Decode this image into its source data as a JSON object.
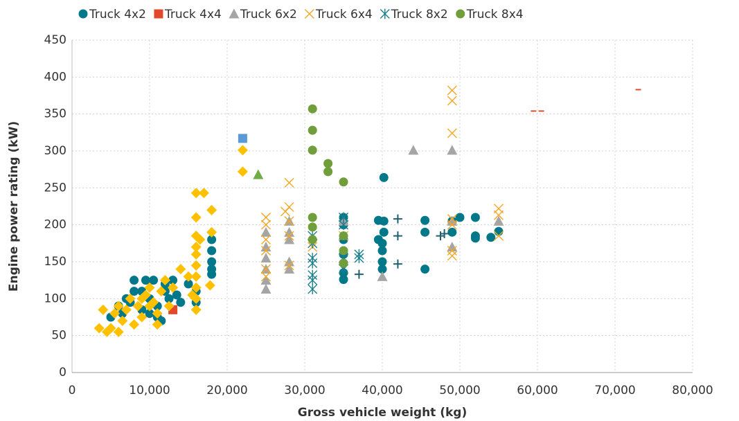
{
  "chart_data": {
    "type": "scatter",
    "xlabel": "Gross vehicle weight (kg)",
    "ylabel": "Engine power rating (kW)",
    "xlim": [
      0,
      80000
    ],
    "ylim": [
      0,
      450
    ],
    "xticks": [
      0,
      {
        "value": 10000,
        "label": "10,000"
      },
      {
        "value": 20000,
        "label": "20,000"
      },
      {
        "value": 30000,
        "label": "30,000"
      },
      {
        "value": 40000,
        "label": "40,000"
      },
      {
        "value": 50000,
        "label": "50,000"
      },
      {
        "value": 60000,
        "label": "60,000"
      },
      {
        "value": 70000,
        "label": "70,000"
      },
      {
        "value": 80000,
        "label": "80,000"
      }
    ],
    "yticks": [
      0,
      50,
      100,
      150,
      200,
      250,
      300,
      350,
      400,
      450
    ],
    "grid": true,
    "legend": "top",
    "series": [
      {
        "name": "Truck 4x2",
        "color": "#00788a",
        "marker": "circle",
        "x": [
          5000,
          6000,
          7000,
          8000,
          9000,
          9500,
          10000,
          10500,
          11000,
          11500,
          12000,
          12500,
          13000,
          14000,
          15000,
          16000,
          16000,
          18000,
          18000,
          18000,
          18000,
          18000,
          35000,
          35000,
          35000,
          35000,
          35000,
          35000,
          35000,
          39500,
          39500,
          40000,
          40000,
          40000,
          40000,
          40200,
          40200,
          40200,
          45500,
          45500,
          45500,
          49000,
          49000,
          50000,
          52000,
          52000,
          52000,
          54000,
          55000,
          9000,
          10000,
          11000,
          8000,
          12000,
          13500,
          6500,
          7500
        ],
        "values": [
          75,
          90,
          100,
          125,
          110,
          125,
          100,
          125,
          90,
          70,
          110,
          100,
          125,
          95,
          120,
          110,
          95,
          180,
          165,
          150,
          140,
          133,
          210,
          200,
          180,
          160,
          148,
          135,
          126,
          206,
          180,
          175,
          165,
          150,
          140,
          264,
          205,
          190,
          206,
          190,
          140,
          205,
          190,
          210,
          210,
          185,
          182,
          183,
          191,
          85,
          80,
          75,
          110,
          120,
          105,
          80,
          95
        ]
      },
      {
        "name": "Truck 4x4",
        "color": "#e0492b",
        "marker": "square",
        "x": [
          13000
        ],
        "values": [
          85
        ]
      },
      {
        "name": "Truck 6x2",
        "color": "#a5a5a5",
        "marker": "triangle",
        "x": [
          25000,
          25000,
          25000,
          25000,
          25000,
          25000,
          28000,
          28000,
          28000,
          28000,
          28000,
          35000,
          40000,
          44000,
          49000,
          49000,
          49000,
          55000
        ],
        "values": [
          113,
          125,
          140,
          155,
          170,
          190,
          140,
          150,
          180,
          190,
          205,
          205,
          130,
          301,
          301,
          170,
          205,
          205
        ]
      },
      {
        "name": "Truck 6x4",
        "color": "#f5a623",
        "marker": "x",
        "x": [
          25000,
          25000,
          25000,
          25000,
          25000,
          25000,
          27500,
          28000,
          28000,
          28000,
          28000,
          28000,
          31000,
          35000,
          49000,
          49000,
          49000,
          49000,
          49000,
          49000,
          49000,
          55000,
          55000,
          55000
        ],
        "values": [
          130,
          140,
          165,
          180,
          200,
          210,
          218,
          224,
          257,
          205,
          185,
          145,
          170,
          185,
          382,
          368,
          324,
          208,
          200,
          165,
          158,
          222,
          213,
          185
        ]
      },
      {
        "name": "Truck 8x2",
        "color": "#1a7f8c",
        "marker": "asterisk",
        "x": [
          31000,
          31000,
          31000,
          31000,
          31000,
          31000,
          31000,
          35000,
          35000,
          35000,
          35000,
          37000,
          37000
        ],
        "values": [
          113,
          125,
          132,
          148,
          155,
          175,
          185,
          210,
          200,
          155,
          140,
          160,
          155
        ]
      },
      {
        "name": "Truck 8x4",
        "color": "#6f9e3a",
        "marker": "circle",
        "x": [
          31000,
          31000,
          31000,
          33000,
          33000,
          35000,
          31000,
          31000,
          31000,
          35000,
          35000,
          35000
        ],
        "values": [
          357,
          328,
          301,
          283,
          272,
          258,
          210,
          197,
          180,
          185,
          165,
          148
        ]
      },
      {
        "color": "#ffc000",
        "marker": "diamond",
        "x": [
          3500,
          4000,
          4500,
          5000,
          5500,
          6000,
          6500,
          7000,
          7500,
          8000,
          8500,
          9000,
          9500,
          10000,
          10500,
          11000,
          11500,
          12000,
          12500,
          13000,
          14000,
          15000,
          15500,
          16000,
          16000,
          16000,
          16000,
          16000,
          16000,
          16000,
          16000,
          16000,
          16000,
          16500,
          17000,
          18000,
          18000,
          17800,
          22000,
          22000,
          6000,
          9000,
          10000,
          11000
        ],
        "values": [
          60,
          85,
          55,
          60,
          80,
          55,
          70,
          85,
          100,
          65,
          90,
          100,
          105,
          115,
          95,
          80,
          110,
          125,
          90,
          115,
          140,
          130,
          105,
          243,
          210,
          185,
          170,
          160,
          145,
          130,
          115,
          100,
          85,
          180,
          243,
          220,
          190,
          118,
          301,
          272,
          90,
          75,
          90,
          65
        ]
      },
      {
        "color": "#5b9bd5",
        "marker": "square",
        "x": [
          22000
        ],
        "values": [
          317
        ]
      },
      {
        "color": "#70ad47",
        "marker": "triangle",
        "x": [
          24000
        ],
        "values": [
          268
        ]
      },
      {
        "color": "#1f5f6f",
        "marker": "plus",
        "x": [
          37000,
          42000,
          42000,
          42000,
          47500,
          48000
        ],
        "values": [
          133,
          208,
          185,
          147,
          185,
          188
        ]
      },
      {
        "color": "#e0492b",
        "marker": "dash",
        "x": [
          59500,
          60500,
          73000
        ],
        "values": [
          354,
          354,
          383
        ]
      }
    ]
  }
}
